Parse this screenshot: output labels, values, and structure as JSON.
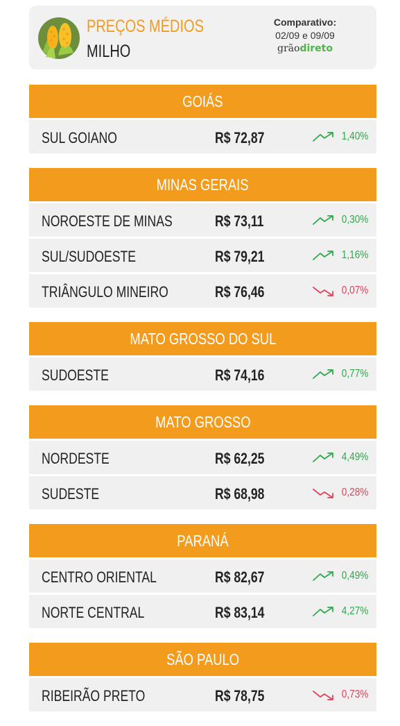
{
  "header": {
    "title": "PREÇOS MÉDIOS",
    "product": "MILHO",
    "comparison_label": "Comparativo:",
    "comparison_dates": "02/09 e 09/09",
    "brand_part1": "grão",
    "brand_part2": "direto"
  },
  "sections": [
    {
      "state": "GOIÁS",
      "rows": [
        {
          "region": "SUL GOIANO",
          "price": "R$ 72,87",
          "change": "1,40%",
          "direction": "up"
        }
      ]
    },
    {
      "state": "MINAS GERAIS",
      "rows": [
        {
          "region": "NOROESTE DE MINAS",
          "price": "R$ 73,11",
          "change": "0,30%",
          "direction": "up"
        },
        {
          "region": "SUL/SUDOESTE",
          "price": "R$ 79,21",
          "change": "1,16%",
          "direction": "up"
        },
        {
          "region": "TRIÂNGULO MINEIRO",
          "price": "R$ 76,46",
          "change": "0,07%",
          "direction": "down"
        }
      ]
    },
    {
      "state": "MATO GROSSO DO SUL",
      "rows": [
        {
          "region": "SUDOESTE",
          "price": "R$ 74,16",
          "change": "0,77%",
          "direction": "up"
        }
      ]
    },
    {
      "state": "MATO GROSSO",
      "rows": [
        {
          "region": "NORDESTE",
          "price": "R$ 62,25",
          "change": "4,49%",
          "direction": "up"
        },
        {
          "region": "SUDESTE",
          "price": "R$ 68,98",
          "change": "0,28%",
          "direction": "down"
        }
      ]
    },
    {
      "state": "PARANÁ",
      "rows": [
        {
          "region": "CENTRO ORIENTAL",
          "price": "R$ 82,67",
          "change": "0,49%",
          "direction": "up"
        },
        {
          "region": "NORTE CENTRAL",
          "price": "R$ 83,14",
          "change": "4,27%",
          "direction": "up"
        }
      ]
    },
    {
      "state": "SÃO PAULO",
      "rows": [
        {
          "region": "RIBEIRÃO PRETO",
          "price": "R$ 78,75",
          "change": "0,73%",
          "direction": "down"
        }
      ]
    }
  ]
}
